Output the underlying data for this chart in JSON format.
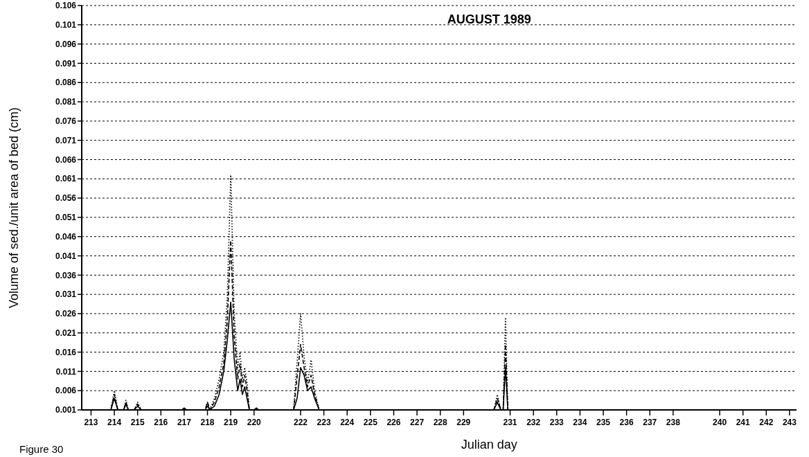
{
  "chart_data": {
    "type": "line",
    "title": "AUGUST 1989",
    "xlabel": "Julian day",
    "ylabel": "Volume of sed./unit area of bed (cm)",
    "annotations": [
      "Figure 30"
    ],
    "xlim": [
      212.6,
      243.3
    ],
    "ylim": [
      0.001,
      0.106
    ],
    "xticks": [
      213,
      214,
      215,
      216,
      217,
      218,
      219,
      220,
      222,
      223,
      224,
      225,
      226,
      227,
      228,
      229,
      231,
      232,
      233,
      234,
      235,
      236,
      237,
      238,
      240,
      241,
      242,
      243
    ],
    "yticks": [
      0.001,
      0.006,
      0.011,
      0.016,
      0.021,
      0.026,
      0.031,
      0.036,
      0.041,
      0.046,
      0.051,
      0.056,
      0.061,
      0.066,
      0.071,
      0.076,
      0.081,
      0.086,
      0.091,
      0.096,
      0.101,
      0.106
    ],
    "grid": "y",
    "marker": "none",
    "series": [
      {
        "color": "#000000",
        "line_style": "solid",
        "x": [
          212.6,
          213.85,
          214,
          214.15,
          214.4,
          214.5,
          214.6,
          214.85,
          215,
          215.15,
          216.9,
          217,
          217.1,
          217.9,
          218,
          218.1,
          218.3,
          218.5,
          218.7,
          218.85,
          219,
          219.15,
          219.3,
          219.4,
          219.5,
          219.6,
          219.7,
          219.8,
          220,
          220.1,
          220.2,
          221.7,
          221.85,
          222,
          222.15,
          222.3,
          222.45,
          222.6,
          222.8,
          230.3,
          230.45,
          230.6,
          230.7,
          230.8,
          230.9,
          243.3
        ],
        "values": [
          0.001,
          0.001,
          0.004,
          0.001,
          0.001,
          0.0025,
          0.001,
          0.001,
          0.002,
          0.001,
          0.001,
          0.0015,
          0.001,
          0.001,
          0.002,
          0.001,
          0.002,
          0.005,
          0.011,
          0.019,
          0.029,
          0.014,
          0.006,
          0.009,
          0.005,
          0.007,
          0.004,
          0.001,
          0.001,
          0.0015,
          0.001,
          0.001,
          0.004,
          0.012,
          0.01,
          0.006,
          0.007,
          0.004,
          0.001,
          0.001,
          0.003,
          0.001,
          0.001,
          0.012,
          0.001,
          0.001
        ]
      },
      {
        "color": "#000000",
        "line_style": "dashed",
        "x": [
          212.6,
          213.85,
          214,
          214.15,
          214.4,
          214.5,
          214.6,
          214.85,
          215,
          215.15,
          217.9,
          218,
          218.1,
          218.3,
          218.5,
          218.7,
          218.85,
          219,
          219.15,
          219.3,
          219.4,
          219.5,
          219.6,
          219.7,
          219.8,
          221.7,
          222,
          222.15,
          222.3,
          222.45,
          222.6,
          222.8,
          230.3,
          230.45,
          230.6,
          230.7,
          230.8,
          230.9,
          243.3
        ],
        "values": [
          0.001,
          0.001,
          0.005,
          0.001,
          0.001,
          0.003,
          0.001,
          0.001,
          0.0025,
          0.001,
          0.001,
          0.003,
          0.001,
          0.003,
          0.007,
          0.013,
          0.024,
          0.045,
          0.02,
          0.009,
          0.013,
          0.007,
          0.01,
          0.006,
          0.001,
          0.001,
          0.018,
          0.012,
          0.007,
          0.01,
          0.005,
          0.001,
          0.001,
          0.004,
          0.001,
          0.001,
          0.018,
          0.001,
          0.001
        ]
      },
      {
        "color": "#000000",
        "line_style": "dotted",
        "x": [
          212.6,
          213.85,
          214,
          214.15,
          214.4,
          214.5,
          214.6,
          214.85,
          215,
          215.15,
          217.9,
          218,
          218.1,
          218.3,
          218.5,
          218.7,
          218.85,
          219,
          219.15,
          219.3,
          219.4,
          219.5,
          219.6,
          219.7,
          219.8,
          221.7,
          222,
          222.15,
          222.3,
          222.45,
          222.6,
          222.8,
          230.3,
          230.45,
          230.6,
          230.7,
          230.8,
          230.9,
          243.3
        ],
        "values": [
          0.001,
          0.001,
          0.006,
          0.001,
          0.001,
          0.0035,
          0.001,
          0.001,
          0.003,
          0.001,
          0.001,
          0.003,
          0.001,
          0.004,
          0.009,
          0.016,
          0.03,
          0.062,
          0.026,
          0.012,
          0.016,
          0.009,
          0.012,
          0.008,
          0.001,
          0.001,
          0.026,
          0.015,
          0.008,
          0.014,
          0.006,
          0.001,
          0.001,
          0.005,
          0.001,
          0.001,
          0.025,
          0.001,
          0.001
        ]
      }
    ]
  }
}
